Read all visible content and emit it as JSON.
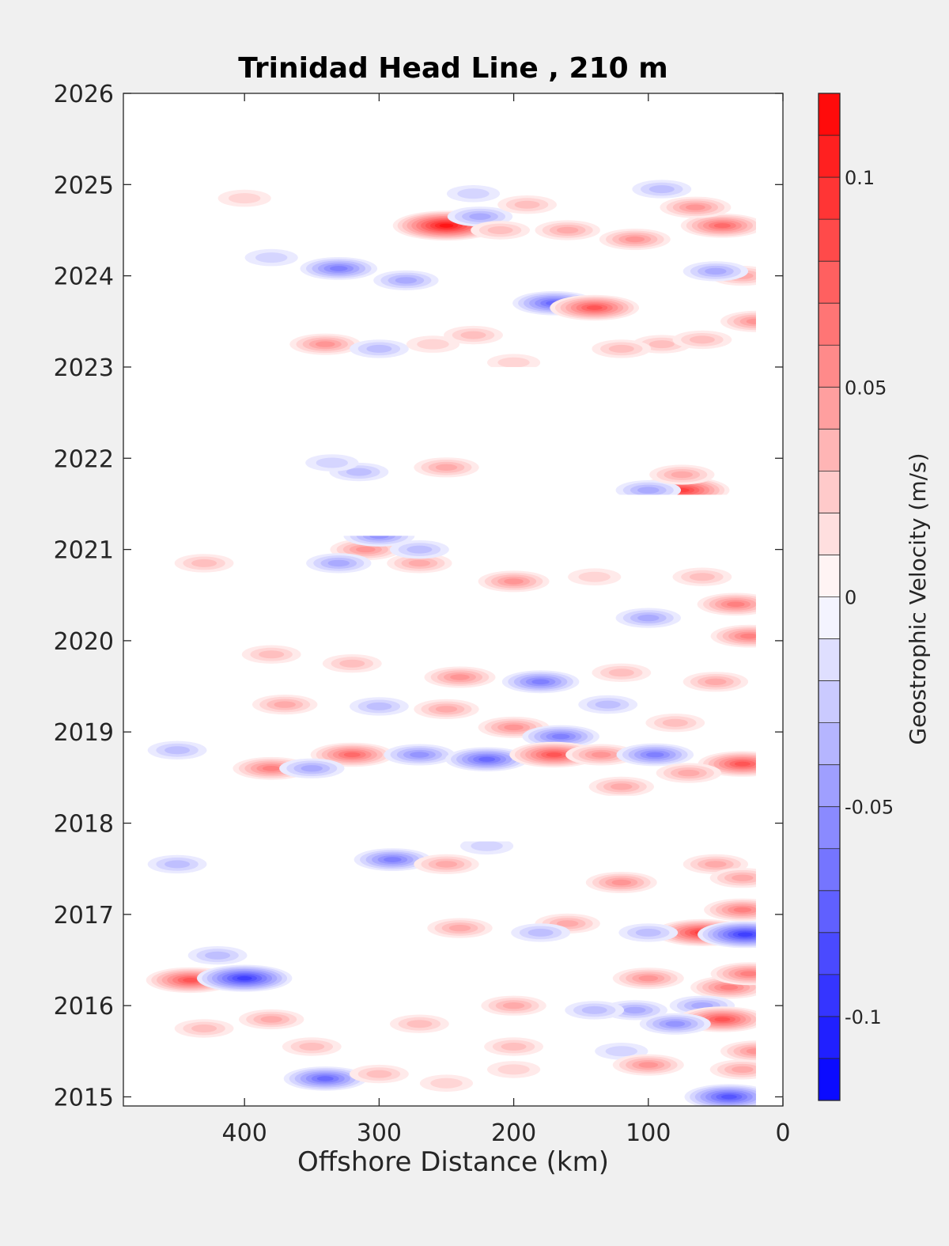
{
  "chart_data": {
    "type": "heatmap",
    "title": "Trinidad Head Line , 210 m",
    "xlabel": "Offshore Distance (km)",
    "ylabel": "",
    "xlim": [
      490,
      0
    ],
    "ylim": [
      2014.9,
      2026
    ],
    "x_ticks": [
      "400",
      "300",
      "200",
      "100",
      "0"
    ],
    "x_tick_values": [
      400,
      300,
      200,
      100,
      0
    ],
    "y_ticks": [
      "2015",
      "2016",
      "2017",
      "2018",
      "2019",
      "2020",
      "2021",
      "2022",
      "2023",
      "2024",
      "2025",
      "2026"
    ],
    "y_tick_values": [
      2015,
      2016,
      2017,
      2018,
      2019,
      2020,
      2021,
      2022,
      2023,
      2024,
      2025,
      2026
    ],
    "colorbar": {
      "label": "Geostrophic Velocity (m/s)",
      "range": [
        -0.12,
        0.12
      ],
      "levels": 24,
      "tick_labels": [
        "0.1",
        "0.05",
        "0",
        "-0.05",
        "-0.1"
      ],
      "tick_values": [
        0.1,
        0.05,
        0,
        -0.05,
        -0.1
      ],
      "color_negative": "#0000ff",
      "color_zero": "#ffffff",
      "color_positive": "#ff0000"
    },
    "data_coverage": [
      {
        "from": 2023.0,
        "to": 2025.25,
        "x_range": [
          490,
          20
        ]
      },
      {
        "from": 2021.6,
        "to": 2022.05,
        "x_range": [
          360,
          20
        ]
      },
      {
        "from": 2020.6,
        "to": 2021.15,
        "x_range": [
          420,
          20
        ]
      },
      {
        "from": 2018.3,
        "to": 2020.6,
        "x_range": [
          490,
          20
        ]
      },
      {
        "from": 2014.9,
        "to": 2017.8,
        "x_range": [
          490,
          20
        ]
      }
    ],
    "features": [
      {
        "x": 250,
        "y": 2024.55,
        "v": 0.11
      },
      {
        "x": 170,
        "y": 2023.7,
        "v": -0.07
      },
      {
        "x": 140,
        "y": 2023.65,
        "v": 0.08
      },
      {
        "x": 225,
        "y": 2024.65,
        "v": -0.04
      },
      {
        "x": 45,
        "y": 2024.55,
        "v": 0.07
      },
      {
        "x": 65,
        "y": 2024.75,
        "v": 0.05
      },
      {
        "x": 110,
        "y": 2024.4,
        "v": 0.05
      },
      {
        "x": 330,
        "y": 2024.08,
        "v": -0.06
      },
      {
        "x": 280,
        "y": 2023.95,
        "v": -0.04
      },
      {
        "x": 380,
        "y": 2024.2,
        "v": -0.02
      },
      {
        "x": 210,
        "y": 2024.5,
        "v": 0.03
      },
      {
        "x": 160,
        "y": 2024.5,
        "v": 0.04
      },
      {
        "x": 20,
        "y": 2023.5,
        "v": 0.05
      },
      {
        "x": 30,
        "y": 2024.0,
        "v": 0.04
      },
      {
        "x": 50,
        "y": 2024.05,
        "v": -0.04
      },
      {
        "x": 340,
        "y": 2023.25,
        "v": 0.05
      },
      {
        "x": 300,
        "y": 2023.2,
        "v": -0.03
      },
      {
        "x": 230,
        "y": 2023.35,
        "v": 0.03
      },
      {
        "x": 90,
        "y": 2023.25,
        "v": 0.03
      },
      {
        "x": 120,
        "y": 2023.2,
        "v": 0.03
      },
      {
        "x": 60,
        "y": 2023.3,
        "v": 0.03
      },
      {
        "x": 260,
        "y": 2023.25,
        "v": 0.02
      },
      {
        "x": 200,
        "y": 2023.05,
        "v": 0.02
      },
      {
        "x": 90,
        "y": 2024.95,
        "v": -0.03
      },
      {
        "x": 400,
        "y": 2024.85,
        "v": 0.02
      },
      {
        "x": 230,
        "y": 2024.9,
        "v": -0.02
      },
      {
        "x": 190,
        "y": 2024.78,
        "v": 0.03
      },
      {
        "x": 250,
        "y": 2021.9,
        "v": 0.04
      },
      {
        "x": 315,
        "y": 2021.85,
        "v": -0.03
      },
      {
        "x": 75,
        "y": 2021.65,
        "v": 0.09
      },
      {
        "x": 100,
        "y": 2021.65,
        "v": -0.04
      },
      {
        "x": 335,
        "y": 2021.95,
        "v": -0.02
      },
      {
        "x": 75,
        "y": 2021.82,
        "v": 0.04
      },
      {
        "x": 310,
        "y": 2021.0,
        "v": 0.05
      },
      {
        "x": 300,
        "y": 2021.15,
        "v": -0.05
      },
      {
        "x": 330,
        "y": 2020.85,
        "v": -0.04
      },
      {
        "x": 270,
        "y": 2020.85,
        "v": 0.04
      },
      {
        "x": 200,
        "y": 2020.65,
        "v": 0.05
      },
      {
        "x": 430,
        "y": 2020.85,
        "v": 0.03
      },
      {
        "x": 270,
        "y": 2021.0,
        "v": -0.03
      },
      {
        "x": 140,
        "y": 2020.7,
        "v": 0.02
      },
      {
        "x": 60,
        "y": 2020.7,
        "v": 0.03
      },
      {
        "x": 35,
        "y": 2020.4,
        "v": 0.06
      },
      {
        "x": 25,
        "y": 2020.05,
        "v": 0.06
      },
      {
        "x": 100,
        "y": 2020.25,
        "v": -0.04
      },
      {
        "x": 240,
        "y": 2019.6,
        "v": 0.05
      },
      {
        "x": 180,
        "y": 2019.55,
        "v": -0.06
      },
      {
        "x": 320,
        "y": 2019.75,
        "v": 0.03
      },
      {
        "x": 380,
        "y": 2019.85,
        "v": 0.03
      },
      {
        "x": 120,
        "y": 2019.65,
        "v": 0.03
      },
      {
        "x": 50,
        "y": 2019.55,
        "v": 0.04
      },
      {
        "x": 370,
        "y": 2019.3,
        "v": 0.04
      },
      {
        "x": 300,
        "y": 2019.28,
        "v": -0.03
      },
      {
        "x": 250,
        "y": 2019.25,
        "v": 0.04
      },
      {
        "x": 200,
        "y": 2019.05,
        "v": 0.05
      },
      {
        "x": 165,
        "y": 2018.95,
        "v": -0.06
      },
      {
        "x": 130,
        "y": 2019.3,
        "v": -0.03
      },
      {
        "x": 80,
        "y": 2019.1,
        "v": 0.03
      },
      {
        "x": 320,
        "y": 2018.75,
        "v": 0.07
      },
      {
        "x": 270,
        "y": 2018.75,
        "v": -0.05
      },
      {
        "x": 220,
        "y": 2018.7,
        "v": -0.07
      },
      {
        "x": 170,
        "y": 2018.75,
        "v": 0.08
      },
      {
        "x": 135,
        "y": 2018.75,
        "v": 0.05
      },
      {
        "x": 95,
        "y": 2018.75,
        "v": -0.06
      },
      {
        "x": 30,
        "y": 2018.65,
        "v": 0.08
      },
      {
        "x": 380,
        "y": 2018.6,
        "v": 0.06
      },
      {
        "x": 350,
        "y": 2018.6,
        "v": -0.04
      },
      {
        "x": 450,
        "y": 2018.8,
        "v": -0.03
      },
      {
        "x": 70,
        "y": 2018.55,
        "v": 0.04
      },
      {
        "x": 120,
        "y": 2018.4,
        "v": 0.04
      },
      {
        "x": 290,
        "y": 2017.6,
        "v": -0.06
      },
      {
        "x": 250,
        "y": 2017.55,
        "v": 0.04
      },
      {
        "x": 120,
        "y": 2017.35,
        "v": 0.05
      },
      {
        "x": 50,
        "y": 2017.55,
        "v": 0.04
      },
      {
        "x": 30,
        "y": 2017.4,
        "v": 0.04
      },
      {
        "x": 450,
        "y": 2017.55,
        "v": -0.03
      },
      {
        "x": 220,
        "y": 2017.75,
        "v": -0.02
      },
      {
        "x": 60,
        "y": 2016.8,
        "v": 0.09
      },
      {
        "x": 28,
        "y": 2016.78,
        "v": -0.09
      },
      {
        "x": 30,
        "y": 2017.05,
        "v": 0.06
      },
      {
        "x": 240,
        "y": 2016.85,
        "v": 0.04
      },
      {
        "x": 160,
        "y": 2016.9,
        "v": 0.04
      },
      {
        "x": 180,
        "y": 2016.8,
        "v": -0.03
      },
      {
        "x": 100,
        "y": 2016.8,
        "v": -0.03
      },
      {
        "x": 440,
        "y": 2016.28,
        "v": 0.08
      },
      {
        "x": 400,
        "y": 2016.3,
        "v": -0.09
      },
      {
        "x": 420,
        "y": 2016.55,
        "v": -0.03
      },
      {
        "x": 100,
        "y": 2016.3,
        "v": 0.05
      },
      {
        "x": 40,
        "y": 2016.2,
        "v": 0.06
      },
      {
        "x": 25,
        "y": 2016.35,
        "v": 0.06
      },
      {
        "x": 60,
        "y": 2016.0,
        "v": -0.04
      },
      {
        "x": 45,
        "y": 2015.85,
        "v": 0.08
      },
      {
        "x": 110,
        "y": 2015.95,
        "v": -0.04
      },
      {
        "x": 200,
        "y": 2016.0,
        "v": 0.04
      },
      {
        "x": 140,
        "y": 2015.95,
        "v": -0.03
      },
      {
        "x": 270,
        "y": 2015.8,
        "v": 0.03
      },
      {
        "x": 380,
        "y": 2015.85,
        "v": 0.04
      },
      {
        "x": 430,
        "y": 2015.75,
        "v": 0.03
      },
      {
        "x": 80,
        "y": 2015.8,
        "v": -0.05
      },
      {
        "x": 350,
        "y": 2015.55,
        "v": 0.03
      },
      {
        "x": 200,
        "y": 2015.55,
        "v": 0.03
      },
      {
        "x": 120,
        "y": 2015.5,
        "v": -0.02
      },
      {
        "x": 340,
        "y": 2015.2,
        "v": -0.07
      },
      {
        "x": 300,
        "y": 2015.25,
        "v": 0.03
      },
      {
        "x": 100,
        "y": 2015.35,
        "v": 0.05
      },
      {
        "x": 40,
        "y": 2015.0,
        "v": -0.08
      },
      {
        "x": 30,
        "y": 2015.3,
        "v": 0.04
      },
      {
        "x": 20,
        "y": 2015.5,
        "v": 0.05
      },
      {
        "x": 200,
        "y": 2015.3,
        "v": 0.02
      },
      {
        "x": 250,
        "y": 2015.15,
        "v": 0.02
      }
    ]
  }
}
